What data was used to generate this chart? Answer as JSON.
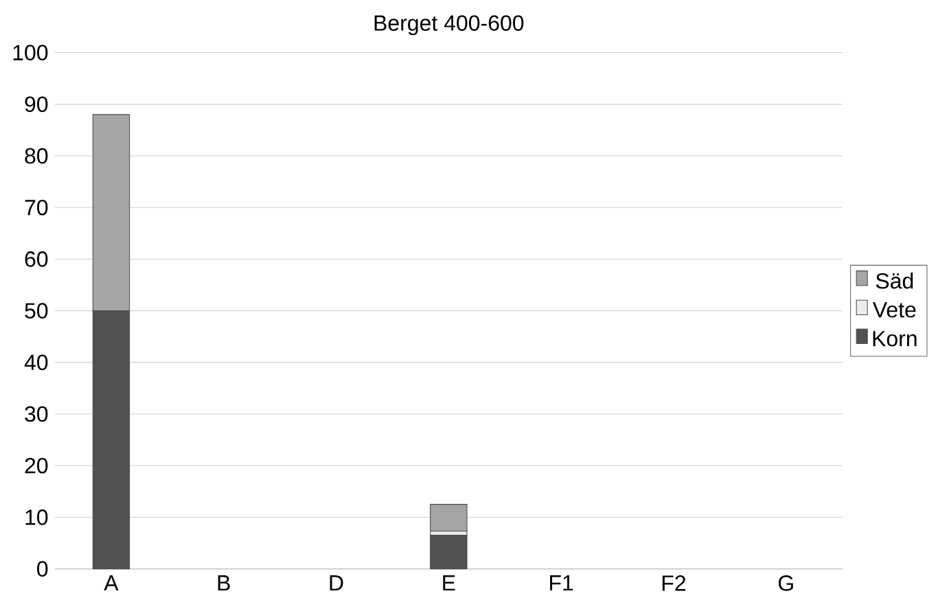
{
  "chart_data": {
    "type": "bar",
    "title": "Berget 400-600",
    "stacked": true,
    "categories": [
      "A",
      "B",
      "D",
      "E",
      "F1",
      "F2",
      "G"
    ],
    "series": [
      {
        "name": "Korn",
        "color": "#515151",
        "values": [
          50,
          0,
          0,
          6.5,
          0,
          0,
          0
        ]
      },
      {
        "name": "Vete",
        "color": "#ececec",
        "values": [
          0,
          0,
          0,
          0.8,
          0,
          0,
          0
        ]
      },
      {
        "name": "Säd",
        "color": "#a5a5a5",
        "values": [
          38,
          0,
          0,
          5.2,
          0,
          0,
          0
        ]
      }
    ],
    "ylim": [
      0,
      100
    ],
    "yticks": [
      0,
      10,
      20,
      30,
      40,
      50,
      60,
      70,
      80,
      90,
      100
    ],
    "grid": "y",
    "legend": "right"
  }
}
